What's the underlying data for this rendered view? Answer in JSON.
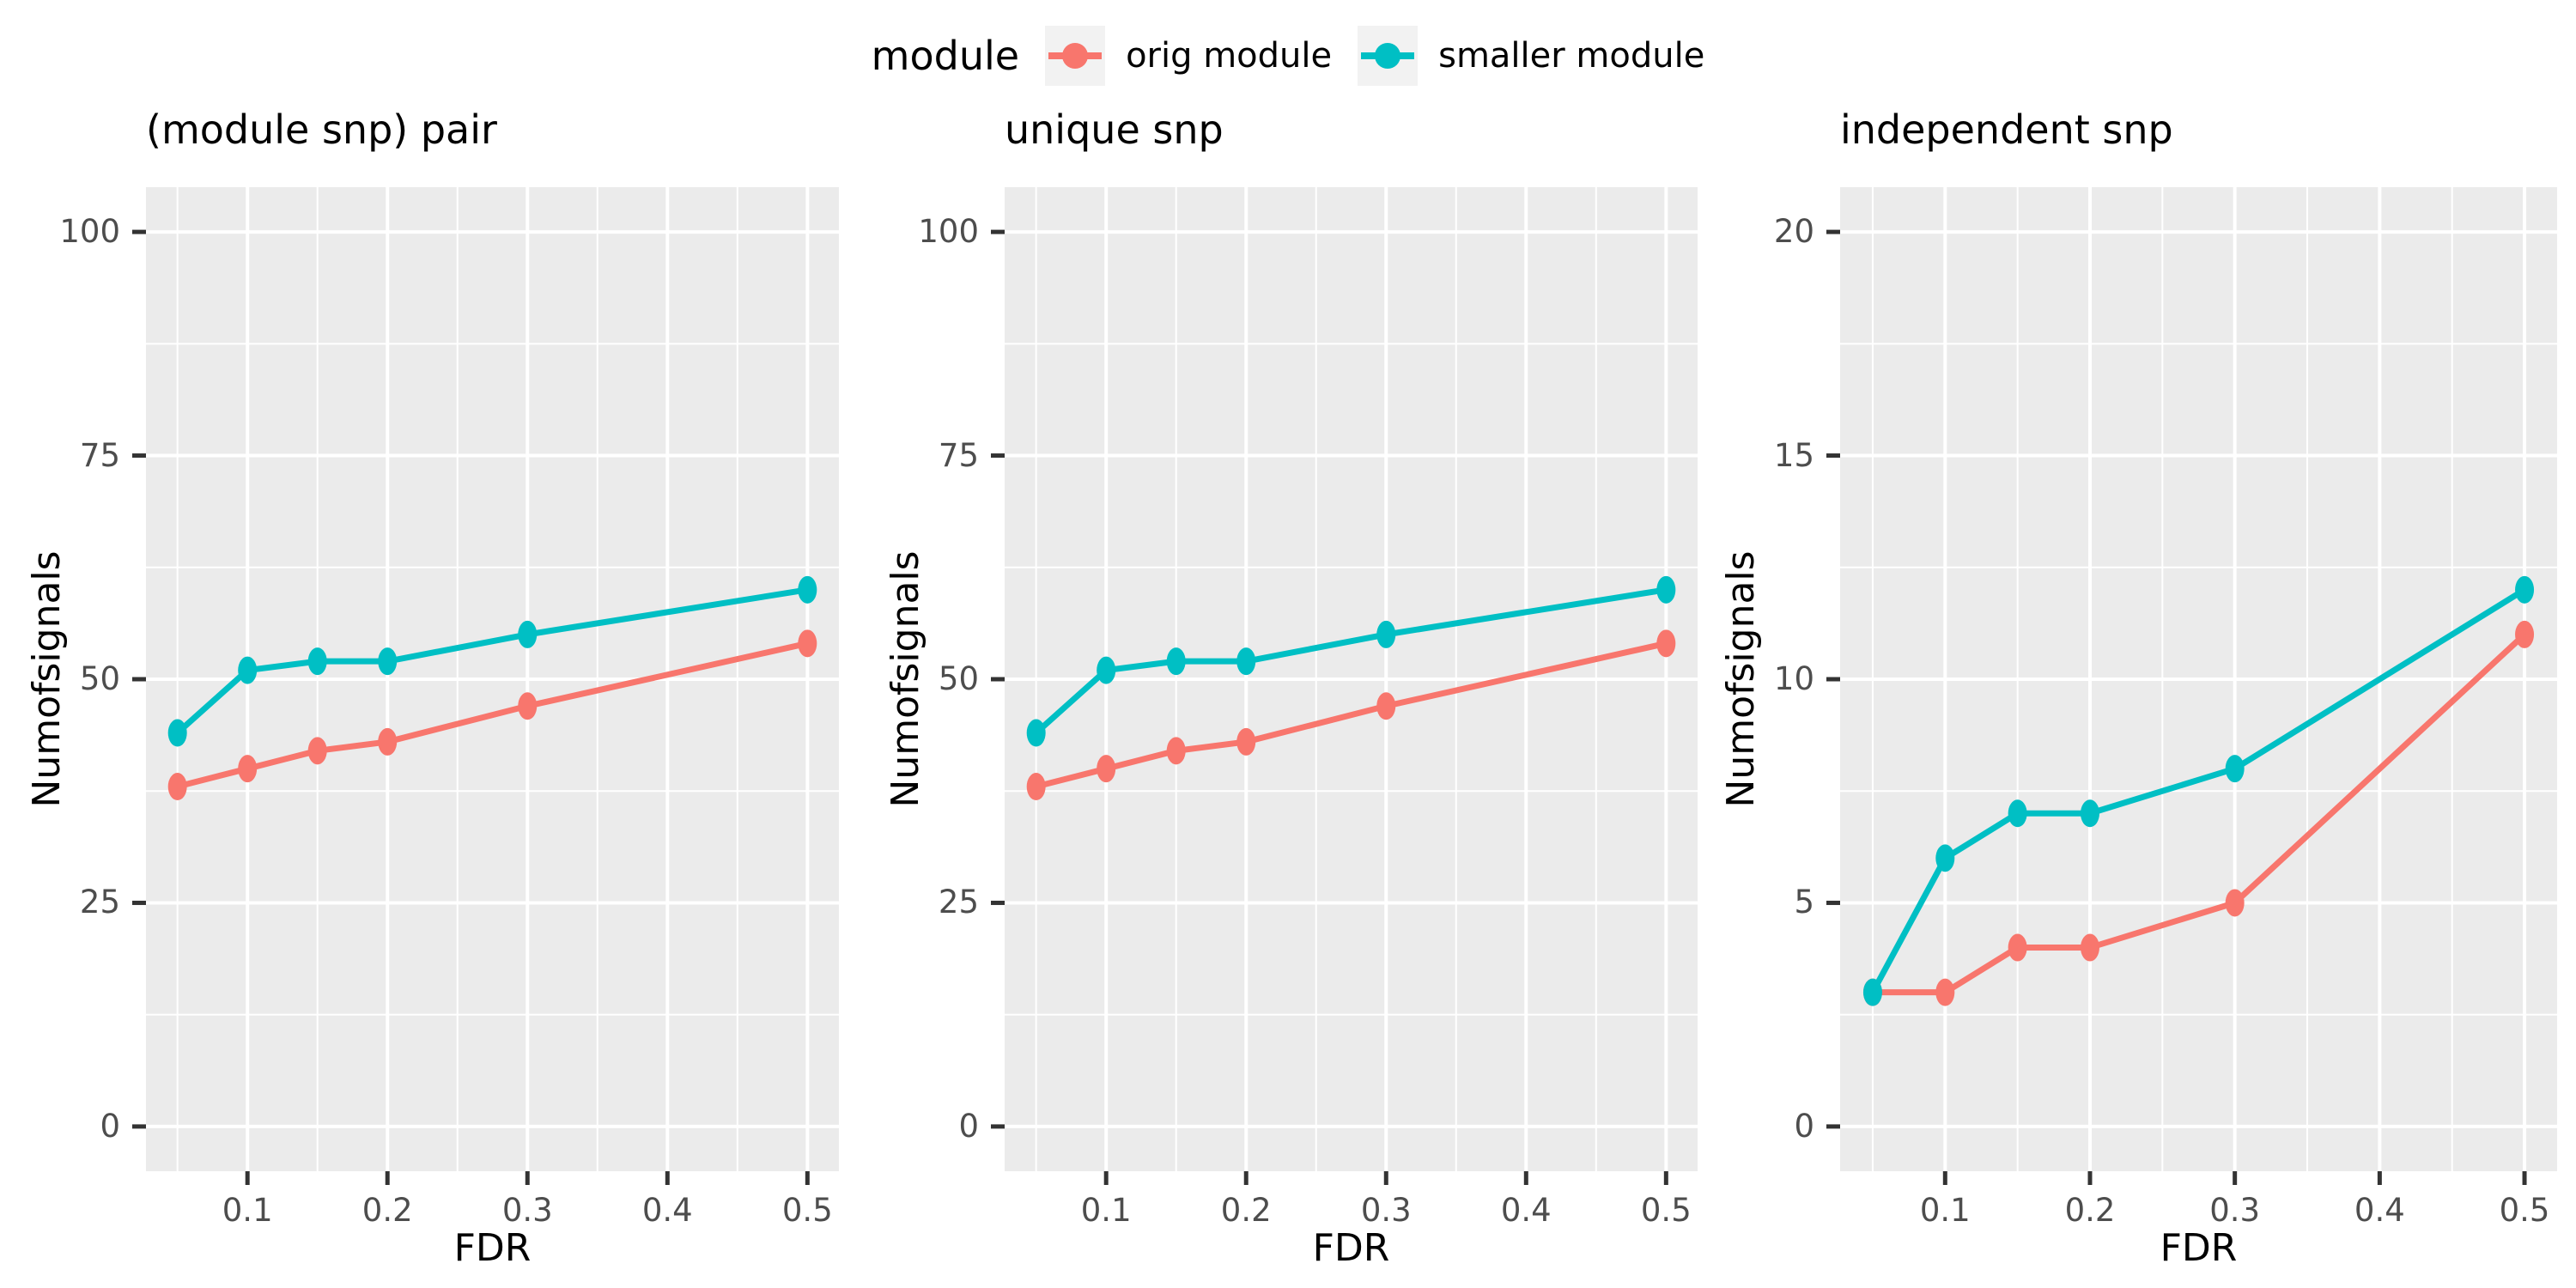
{
  "colors": {
    "panel_bg": "#EBEBEB",
    "grid": "#FFFFFF",
    "tick_label": "#4D4D4D",
    "tick_mark": "#333333",
    "text": "#000000",
    "orig_module": "#F8766D",
    "smaller_module": "#00BFC4",
    "legend_key_bg": "#F2F2F2"
  },
  "legend": {
    "title": "module",
    "items": [
      {
        "label": "orig module",
        "color": "#F8766D"
      },
      {
        "label": "smaller module",
        "color": "#00BFC4"
      }
    ]
  },
  "chart_data": [
    {
      "type": "line",
      "title": "(module snp) pair",
      "xlabel": "FDR",
      "ylabel": "Numofsignals",
      "x": [
        0.05,
        0.1,
        0.15,
        0.2,
        0.3,
        0.5
      ],
      "series": [
        {
          "name": "orig module",
          "color": "#F8766D",
          "values": [
            38,
            40,
            42,
            43,
            47,
            54
          ]
        },
        {
          "name": "smaller module",
          "color": "#00BFC4",
          "values": [
            44,
            51,
            52,
            52,
            55,
            60
          ]
        }
      ],
      "xlim": [
        0.0275,
        0.5225
      ],
      "ylim": [
        -5,
        105
      ],
      "x_ticks": {
        "values": [
          0.1,
          0.2,
          0.3,
          0.4,
          0.5
        ],
        "labels": [
          "0.1",
          "0.2",
          "0.3",
          "0.4",
          "0.5"
        ]
      },
      "y_ticks": {
        "values": [
          0,
          25,
          50,
          75,
          100
        ],
        "labels": [
          "0",
          "25",
          "50",
          "75",
          "100"
        ]
      },
      "x_minor": [
        0.05,
        0.15,
        0.25,
        0.35,
        0.45
      ],
      "y_minor": [
        12.5,
        37.5,
        62.5,
        87.5
      ],
      "grid": true,
      "legend_position": "top"
    },
    {
      "type": "line",
      "title": "unique snp",
      "xlabel": "FDR",
      "ylabel": "Numofsignals",
      "x": [
        0.05,
        0.1,
        0.15,
        0.2,
        0.3,
        0.5
      ],
      "series": [
        {
          "name": "orig module",
          "color": "#F8766D",
          "values": [
            38,
            40,
            42,
            43,
            47,
            54
          ]
        },
        {
          "name": "smaller module",
          "color": "#00BFC4",
          "values": [
            44,
            51,
            52,
            52,
            55,
            60
          ]
        }
      ],
      "xlim": [
        0.0275,
        0.5225
      ],
      "ylim": [
        -5,
        105
      ],
      "x_ticks": {
        "values": [
          0.1,
          0.2,
          0.3,
          0.4,
          0.5
        ],
        "labels": [
          "0.1",
          "0.2",
          "0.3",
          "0.4",
          "0.5"
        ]
      },
      "y_ticks": {
        "values": [
          0,
          25,
          50,
          75,
          100
        ],
        "labels": [
          "0",
          "25",
          "50",
          "75",
          "100"
        ]
      },
      "x_minor": [
        0.05,
        0.15,
        0.25,
        0.35,
        0.45
      ],
      "y_minor": [
        12.5,
        37.5,
        62.5,
        87.5
      ],
      "grid": true,
      "legend_position": "top"
    },
    {
      "type": "line",
      "title": "independent snp",
      "xlabel": "FDR",
      "ylabel": "Numofsignals",
      "x": [
        0.05,
        0.1,
        0.15,
        0.2,
        0.3,
        0.5
      ],
      "series": [
        {
          "name": "orig module",
          "color": "#F8766D",
          "values": [
            3,
            3,
            4,
            4,
            5,
            11
          ]
        },
        {
          "name": "smaller module",
          "color": "#00BFC4",
          "values": [
            3,
            6,
            7,
            7,
            8,
            12
          ]
        }
      ],
      "xlim": [
        0.0275,
        0.5225
      ],
      "ylim": [
        -1,
        21
      ],
      "x_ticks": {
        "values": [
          0.1,
          0.2,
          0.3,
          0.4,
          0.5
        ],
        "labels": [
          "0.1",
          "0.2",
          "0.3",
          "0.4",
          "0.5"
        ]
      },
      "y_ticks": {
        "values": [
          0,
          5,
          10,
          15,
          20
        ],
        "labels": [
          "0",
          "5",
          "10",
          "15",
          "20"
        ]
      },
      "x_minor": [
        0.05,
        0.15,
        0.25,
        0.35,
        0.45
      ],
      "y_minor": [
        2.5,
        7.5,
        12.5,
        17.5
      ],
      "grid": true,
      "legend_position": "top"
    }
  ]
}
